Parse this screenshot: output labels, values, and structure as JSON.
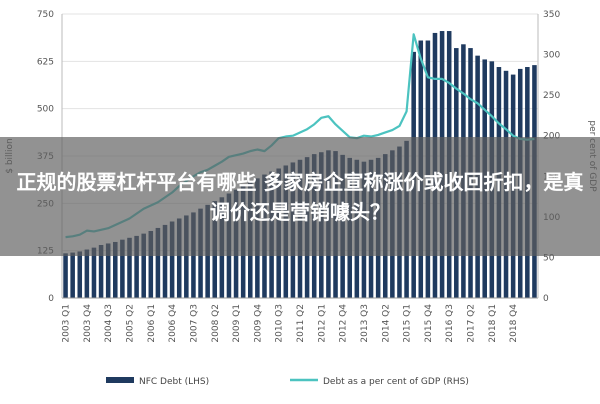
{
  "headline": "正规的股票杠杆平台有哪些 多家房企宣称涨价或收回折扣，是真调价还是营销噱头？",
  "chart_data": {
    "type": "bar",
    "title": "",
    "x_tick_labels": [
      "2003 Q1",
      "2003 Q4",
      "2004 Q3",
      "2005 Q2",
      "2006 Q1",
      "2006 Q4",
      "2007 Q3",
      "2008 Q2",
      "2009 Q1",
      "2009 Q4",
      "2010 Q3",
      "2011 Q2",
      "2012 Q1",
      "2012 Q4",
      "2013 Q3",
      "2014 Q2",
      "2015 Q1",
      "2015 Q4",
      "2016 Q3",
      "2017 Q2",
      "2018 Q1",
      "2018 Q4"
    ],
    "ylabel_left": "$ billion",
    "ylabel_right": "per cent of GDP",
    "ylim_left": [
      0,
      750
    ],
    "ylim_right": [
      0,
      350
    ],
    "yticks_left": [
      "0",
      "125",
      "250",
      "375",
      "500",
      "625",
      "750"
    ],
    "yticks_right": [
      "0",
      "50",
      "100",
      "150",
      "200",
      "250",
      "300",
      "350"
    ],
    "grid": true,
    "legend_position": "bottom",
    "colors": {
      "bars": "#1f3a5f",
      "line": "#4cc3c0"
    },
    "series": [
      {
        "name": "NFC Debt (LHS)",
        "type": "bar",
        "axis": "left",
        "values": [
          118,
          120,
          123,
          128,
          133,
          140,
          144,
          148,
          154,
          159,
          164,
          170,
          177,
          185,
          193,
          202,
          210,
          218,
          226,
          236,
          246,
          256,
          266,
          276,
          286,
          296,
          306,
          316,
          326,
          334,
          342,
          350,
          358,
          365,
          372,
          380,
          385,
          390,
          388,
          378,
          370,
          365,
          360,
          365,
          370,
          380,
          390,
          400,
          415,
          650,
          680,
          680,
          700,
          705,
          705,
          660,
          670,
          660,
          640,
          630,
          625,
          610,
          600,
          590,
          605,
          610,
          615
        ]
      },
      {
        "name": "Debt as a per cent of GDP (RHS)",
        "type": "line",
        "axis": "right",
        "values": [
          75,
          76,
          78,
          83,
          82,
          84,
          86,
          90,
          94,
          98,
          104,
          110,
          114,
          118,
          124,
          130,
          138,
          144,
          150,
          155,
          158,
          163,
          168,
          174,
          176,
          178,
          181,
          183,
          181,
          188,
          197,
          199,
          200,
          204,
          208,
          214,
          222,
          224,
          214,
          206,
          198,
          197,
          200,
          199,
          201,
          204,
          207,
          212,
          230,
          325,
          295,
          272,
          270,
          270,
          265,
          258,
          252,
          245,
          240,
          232,
          224,
          215,
          208,
          200,
          196,
          195,
          196
        ]
      }
    ]
  }
}
